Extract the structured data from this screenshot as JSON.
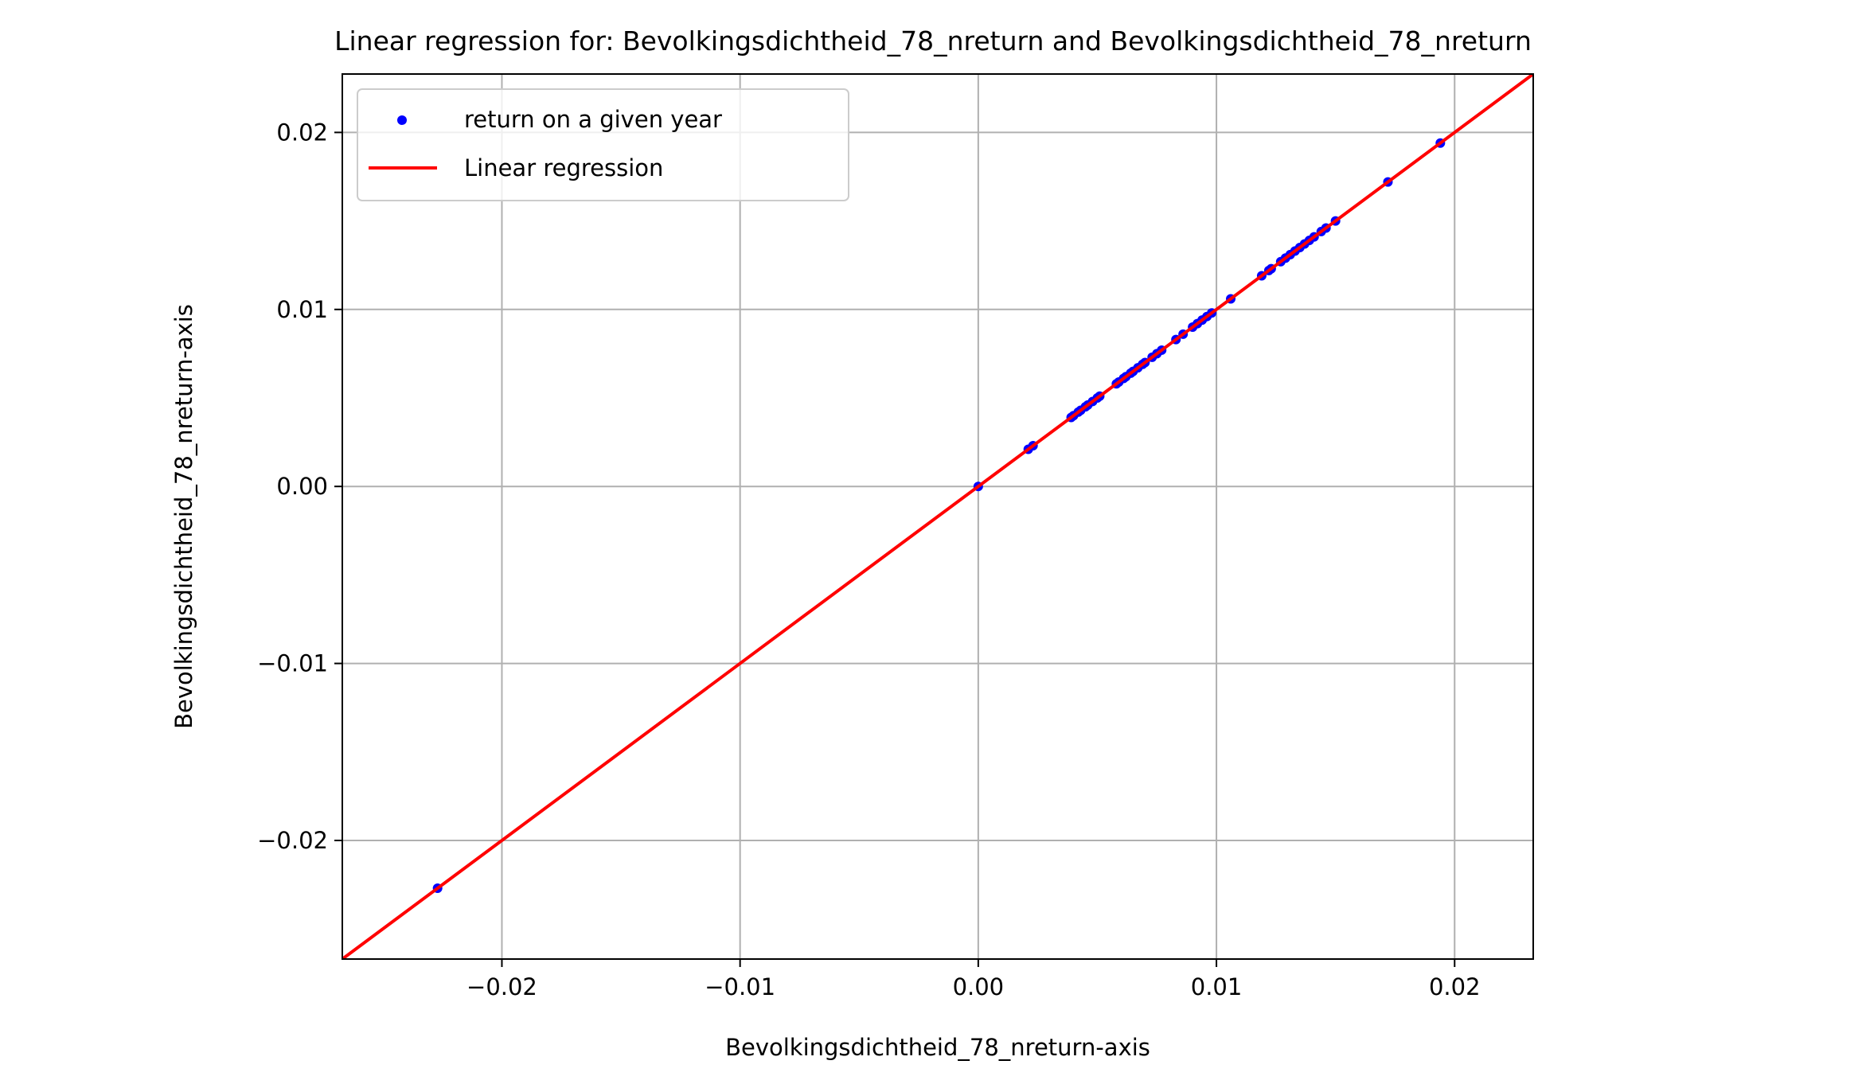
{
  "chart_data": {
    "type": "scatter",
    "title": "Linear regression for: Bevolkingsdichtheid_78_nreturn and Bevolkingsdichtheid_78_nreturn",
    "xlabel": "Bevolkingsdichtheid_78_nreturn-axis",
    "ylabel": "Bevolkingsdichtheid_78_nreturn-axis",
    "xlim": [
      -0.0267,
      0.0233
    ],
    "ylim": [
      -0.0267,
      0.0233
    ],
    "xticks": [
      -0.02,
      -0.01,
      0.0,
      0.01,
      0.02
    ],
    "xtick_labels": [
      "−0.02",
      "−0.01",
      "0.00",
      "0.01",
      "0.02"
    ],
    "yticks": [
      -0.02,
      -0.01,
      0.0,
      0.01,
      0.02
    ],
    "ytick_labels": [
      "−0.02",
      "−0.01",
      "0.00",
      "0.01",
      "0.02"
    ],
    "grid": true,
    "legend_position": "top-left",
    "series": [
      {
        "name": "return on a given year",
        "kind": "scatter",
        "color": "#0000ff",
        "points": [
          [
            -0.0227,
            -0.0227
          ],
          [
            0.0,
            0.0
          ],
          [
            0.0021,
            0.0021
          ],
          [
            0.0023,
            0.0023
          ],
          [
            0.0039,
            0.0039
          ],
          [
            0.004,
            0.004
          ],
          [
            0.0042,
            0.0042
          ],
          [
            0.0043,
            0.0043
          ],
          [
            0.0045,
            0.0045
          ],
          [
            0.0046,
            0.0046
          ],
          [
            0.0048,
            0.0048
          ],
          [
            0.005,
            0.005
          ],
          [
            0.0051,
            0.0051
          ],
          [
            0.0058,
            0.0058
          ],
          [
            0.0059,
            0.0059
          ],
          [
            0.0061,
            0.0061
          ],
          [
            0.0062,
            0.0062
          ],
          [
            0.0064,
            0.0064
          ],
          [
            0.0065,
            0.0065
          ],
          [
            0.0067,
            0.0067
          ],
          [
            0.0069,
            0.0069
          ],
          [
            0.007,
            0.007
          ],
          [
            0.0073,
            0.0073
          ],
          [
            0.0075,
            0.0075
          ],
          [
            0.0077,
            0.0077
          ],
          [
            0.0083,
            0.0083
          ],
          [
            0.0086,
            0.0086
          ],
          [
            0.009,
            0.009
          ],
          [
            0.0092,
            0.0092
          ],
          [
            0.0094,
            0.0094
          ],
          [
            0.0096,
            0.0096
          ],
          [
            0.0098,
            0.0098
          ],
          [
            0.0106,
            0.0106
          ],
          [
            0.0119,
            0.0119
          ],
          [
            0.0122,
            0.0122
          ],
          [
            0.0123,
            0.0123
          ],
          [
            0.0127,
            0.0127
          ],
          [
            0.0129,
            0.0129
          ],
          [
            0.0131,
            0.0131
          ],
          [
            0.0133,
            0.0133
          ],
          [
            0.0135,
            0.0135
          ],
          [
            0.0137,
            0.0137
          ],
          [
            0.0139,
            0.0139
          ],
          [
            0.0141,
            0.0141
          ],
          [
            0.0144,
            0.0144
          ],
          [
            0.0146,
            0.0146
          ],
          [
            0.015,
            0.015
          ],
          [
            0.0172,
            0.0172
          ],
          [
            0.0194,
            0.0194
          ]
        ]
      },
      {
        "name": "Linear regression",
        "kind": "line",
        "color": "#ff0000",
        "slope": 1.0,
        "intercept": 0.0
      }
    ]
  }
}
